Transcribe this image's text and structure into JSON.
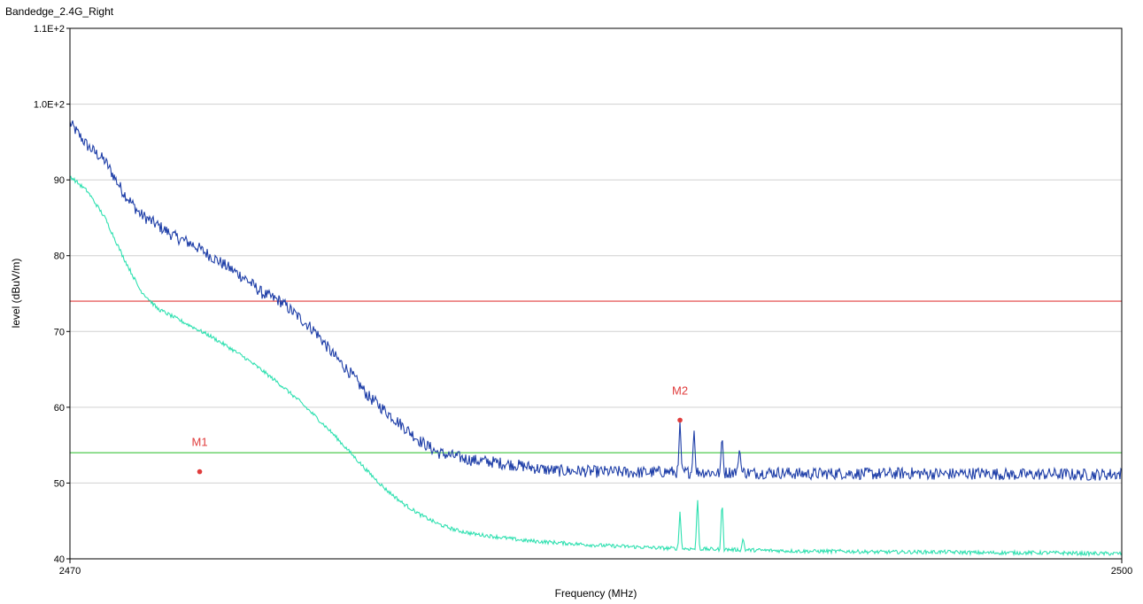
{
  "window": {
    "title": "Bandedge_2.4G_Right"
  },
  "chart_data": {
    "type": "line",
    "title": "Bandedge_2.4G_Right",
    "xlabel": "Frequency (MHz)",
    "ylabel": "level (dBuV/m)",
    "xlim": [
      2470,
      2500
    ],
    "ylim": [
      40,
      110
    ],
    "x_tick_labels": [
      {
        "value": 2470,
        "label": "2470"
      },
      {
        "value": 2500,
        "label": "2500"
      }
    ],
    "y_tick_labels": [
      {
        "value": 40,
        "label": "40"
      },
      {
        "value": 50,
        "label": "50"
      },
      {
        "value": 60,
        "label": "60"
      },
      {
        "value": 70,
        "label": "70"
      },
      {
        "value": 80,
        "label": "80"
      },
      {
        "value": 90,
        "label": "90"
      },
      {
        "value": 100,
        "label": "1.0E+2"
      },
      {
        "value": 110,
        "label": "1.1E+2"
      }
    ],
    "grid": true,
    "limit_lines": [
      {
        "y": 74,
        "color": "#e03c3c"
      },
      {
        "y": 54,
        "color": "#3cc43c"
      }
    ],
    "series": [
      {
        "color": "#1f3fa8",
        "x": [
          2470.0,
          2470.5,
          2471.0,
          2471.5,
          2472.0,
          2472.5,
          2473.0,
          2473.5,
          2474.0,
          2474.5,
          2475.0,
          2475.5,
          2476.0,
          2476.5,
          2477.0,
          2477.5,
          2478.0,
          2478.5,
          2479.0,
          2479.5,
          2480.0,
          2480.5,
          2481.0,
          2481.5,
          2482.0,
          2482.5,
          2483.0,
          2483.5,
          2484.0,
          2484.5,
          2485.0,
          2485.5,
          2486.0,
          2486.5,
          2487.0,
          2487.5,
          2488.0,
          2488.5,
          2489.0,
          2489.5,
          2490.0,
          2491.0,
          2492.0,
          2493.0,
          2494.0,
          2495.0,
          2496.0,
          2497.0,
          2498.0,
          2499.0,
          2500.0
        ],
        "values": [
          97.5,
          94.5,
          92.5,
          88.5,
          85.5,
          84.0,
          82.5,
          81.5,
          80.0,
          78.5,
          77.0,
          75.0,
          74.0,
          72.0,
          70.0,
          67.0,
          64.5,
          61.5,
          59.5,
          57.5,
          55.5,
          54.0,
          53.5,
          53.0,
          52.8,
          52.5,
          52.2,
          51.8,
          51.6,
          51.6,
          51.5,
          51.5,
          51.4,
          51.4,
          51.5,
          51.4,
          51.5,
          51.3,
          51.5,
          51.3,
          51.4,
          51.2,
          51.3,
          51.2,
          51.3,
          51.2,
          51.3,
          51.1,
          51.2,
          51.1,
          51.2
        ],
        "spikes": [
          {
            "x": 2487.4,
            "y": 58.3
          },
          {
            "x": 2487.8,
            "y": 57.2
          },
          {
            "x": 2488.6,
            "y": 56.6
          },
          {
            "x": 2489.1,
            "y": 54.8
          }
        ],
        "noise": 0.8
      },
      {
        "color": "#2fe0b0",
        "x": [
          2470.0,
          2470.5,
          2471.0,
          2471.5,
          2472.0,
          2472.5,
          2473.0,
          2473.5,
          2474.0,
          2474.5,
          2475.0,
          2475.5,
          2476.0,
          2476.5,
          2477.0,
          2477.5,
          2478.0,
          2478.5,
          2479.0,
          2479.5,
          2480.0,
          2480.5,
          2481.0,
          2481.5,
          2482.0,
          2482.5,
          2483.0,
          2484.0,
          2485.0,
          2486.0,
          2487.0,
          2488.0,
          2489.0,
          2490.0,
          2491.0,
          2492.0,
          2493.0,
          2494.0,
          2495.0,
          2496.0,
          2497.0,
          2498.0,
          2499.0,
          2500.0
        ],
        "values": [
          90.5,
          88.5,
          85.0,
          80.0,
          75.5,
          73.0,
          71.8,
          70.6,
          69.4,
          68.0,
          66.5,
          64.8,
          63.0,
          61.0,
          58.8,
          56.5,
          54.0,
          51.5,
          49.2,
          47.3,
          45.8,
          44.6,
          43.8,
          43.3,
          43.0,
          42.7,
          42.4,
          42.1,
          41.8,
          41.6,
          41.4,
          41.3,
          41.2,
          41.1,
          41.0,
          41.0,
          40.9,
          40.9,
          40.9,
          40.8,
          40.8,
          40.8,
          40.7,
          40.7
        ],
        "spikes": [
          {
            "x": 2487.4,
            "y": 46.3
          },
          {
            "x": 2487.9,
            "y": 48.2
          },
          {
            "x": 2488.6,
            "y": 48.0
          },
          {
            "x": 2489.2,
            "y": 42.8
          }
        ],
        "noise": 0.25
      }
    ],
    "markers": [
      {
        "label": "M1",
        "x": 2473.7,
        "y": 51.5,
        "color": "#e03c3c"
      },
      {
        "label": "M2",
        "x": 2487.4,
        "y": 58.3,
        "color": "#e03c3c"
      }
    ]
  }
}
